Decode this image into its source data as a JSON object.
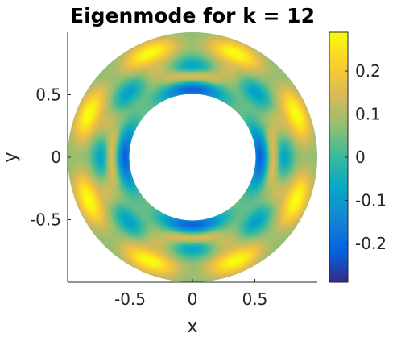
{
  "chart_data": {
    "type": "heatmap",
    "title": "Eigenmode for k = 12",
    "xlabel": "x",
    "ylabel": "y",
    "xlim": [
      -1,
      1
    ],
    "ylim": [
      -1,
      1
    ],
    "domain": "annulus",
    "radii": {
      "inner": 0.5,
      "outer": 1.0
    },
    "x_ticks": [
      -0.5,
      0,
      0.5
    ],
    "x_tick_labels": [
      "-0.5",
      "0",
      "0.5"
    ],
    "y_ticks": [
      0.5,
      0,
      -0.5
    ],
    "y_tick_labels": [
      "0.5",
      "0",
      "-0.5"
    ],
    "grid": false,
    "colormap": "parula",
    "colorbar": {
      "limits": [
        -0.29,
        0.29
      ],
      "ticks": [
        0.2,
        0.1,
        0,
        -0.1,
        -0.2
      ],
      "tick_labels": [
        "0.2",
        "0.1",
        "0",
        "-0.1",
        "-0.2"
      ],
      "placement": "right"
    },
    "field": {
      "description_values": "mode with angular number 4 and 2 radial lobes; minimum about -0.29 at the inner boundary on the axes, maximum about 0.29 on the outer ring",
      "angular_number": 4,
      "min": -0.29,
      "max": 0.29
    }
  }
}
